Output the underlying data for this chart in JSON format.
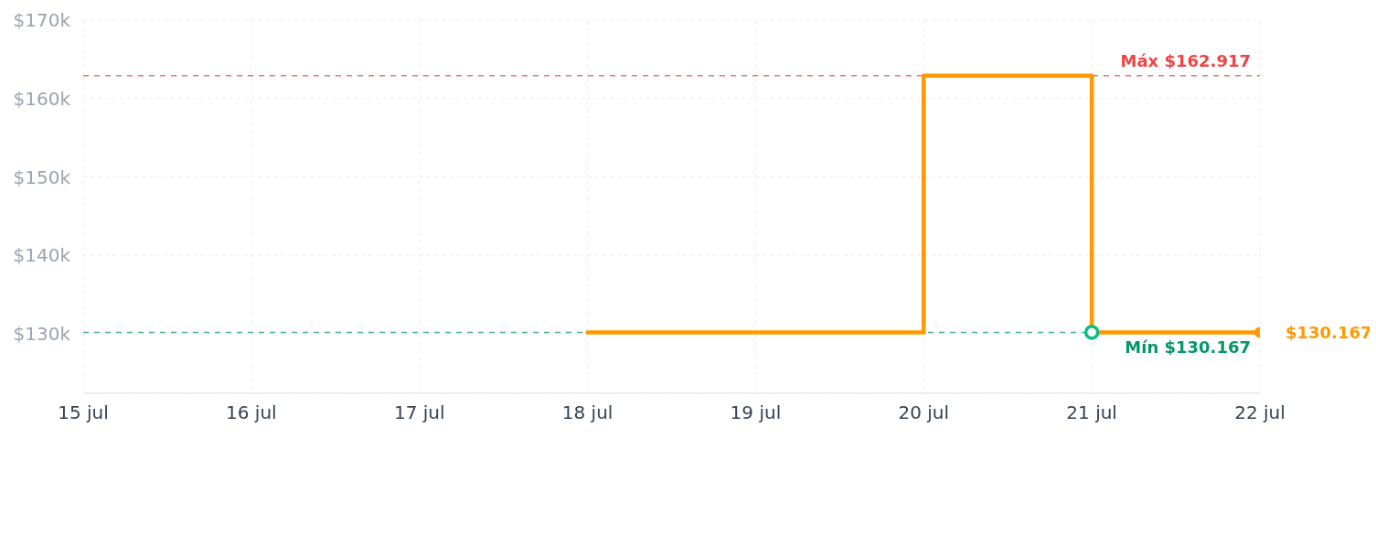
{
  "chart_data": {
    "type": "step",
    "series": [
      {
        "type": "step",
        "color": "#ff9900",
        "x": [
          "--07-18",
          "--07-20",
          "--07-21",
          "--07-22"
        ],
        "values": [
          130167,
          162917,
          130167,
          130167
        ],
        "marker": "none"
      },
      {
        "type": "scatter",
        "color": "#10b981",
        "x": [
          "--07-21"
        ],
        "values": [
          130167
        ],
        "marker": "circle"
      },
      {
        "type": "scatter",
        "color": "#ff9900",
        "x": [
          "--07-22"
        ],
        "values": [
          130167
        ],
        "marker": "circle",
        "value_labels": [
          "$130.167"
        ]
      }
    ],
    "xlim": [
      "--07-15",
      "--07-22"
    ],
    "xticks": [
      {
        "value": "--07-15",
        "label": "15 jul"
      },
      {
        "value": "--07-16",
        "label": "16 jul"
      },
      {
        "value": "--07-17",
        "label": "17 jul"
      },
      {
        "value": "--07-18",
        "label": "18 jul"
      },
      {
        "value": "--07-19",
        "label": "19 jul"
      },
      {
        "value": "--07-20",
        "label": "20 jul"
      },
      {
        "value": "--07-21",
        "label": "21 jul"
      },
      {
        "value": "--07-22",
        "label": "22 jul"
      }
    ],
    "ylim": [
      122400,
      170000
    ],
    "yticks": [
      {
        "value": 130000,
        "label": "$130k"
      },
      {
        "value": 140000,
        "label": "$140k"
      },
      {
        "value": 150000,
        "label": "$150k"
      },
      {
        "value": 160000,
        "label": "$160k"
      },
      {
        "value": 170000,
        "label": "$170k"
      }
    ],
    "ref_lines": [
      {
        "axis": "y",
        "value": 162917,
        "label": "Máx $162.917",
        "color": "#ef4444",
        "line_style": "dashed"
      },
      {
        "axis": "y",
        "value": 130167,
        "label": "Mín $130.167",
        "color": "#059669",
        "line_style": "dashed"
      }
    ],
    "grid": true,
    "line_style": "solid"
  }
}
